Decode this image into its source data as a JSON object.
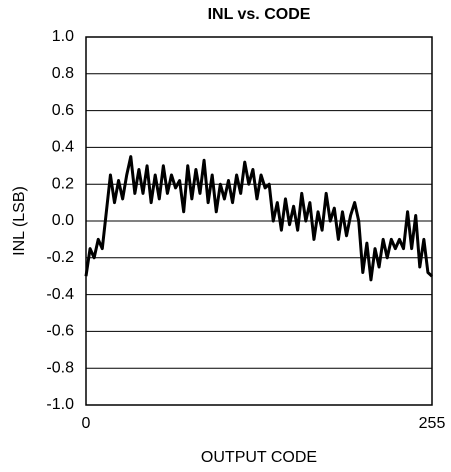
{
  "chart_data": {
    "type": "line",
    "title": "INL vs. CODE",
    "xlabel": "OUTPUT CODE",
    "ylabel": "INL (LSB)",
    "x": [
      0,
      3,
      6,
      9,
      12,
      15,
      18,
      21,
      24,
      27,
      30,
      33,
      36,
      39,
      42,
      45,
      48,
      51,
      54,
      57,
      60,
      63,
      66,
      69,
      72,
      75,
      78,
      81,
      84,
      87,
      90,
      93,
      96,
      99,
      102,
      105,
      108,
      111,
      114,
      117,
      120,
      123,
      126,
      129,
      132,
      135,
      138,
      141,
      144,
      147,
      150,
      153,
      156,
      159,
      162,
      165,
      168,
      171,
      174,
      177,
      180,
      183,
      186,
      189,
      192,
      195,
      198,
      201,
      204,
      207,
      210,
      213,
      216,
      219,
      222,
      225,
      228,
      231,
      234,
      237,
      240,
      243,
      246,
      249,
      252,
      255
    ],
    "series": [
      {
        "color": "#000000",
        "values": [
          -0.3,
          -0.15,
          -0.2,
          -0.1,
          -0.15,
          0.05,
          0.25,
          0.1,
          0.22,
          0.12,
          0.25,
          0.35,
          0.15,
          0.28,
          0.15,
          0.3,
          0.1,
          0.25,
          0.12,
          0.3,
          0.15,
          0.25,
          0.18,
          0.22,
          0.05,
          0.3,
          0.12,
          0.28,
          0.15,
          0.33,
          0.1,
          0.25,
          0.05,
          0.2,
          0.12,
          0.22,
          0.1,
          0.25,
          0.15,
          0.32,
          0.2,
          0.28,
          0.12,
          0.25,
          0.18,
          0.2,
          0.0,
          0.1,
          -0.05,
          0.12,
          -0.02,
          0.08,
          -0.05,
          0.15,
          0.0,
          0.1,
          -0.1,
          0.05,
          -0.05,
          0.15,
          0.0,
          0.07,
          -0.1,
          0.05,
          -0.08,
          0.03,
          0.1,
          0.0,
          -0.28,
          -0.12,
          -0.32,
          -0.15,
          -0.25,
          -0.1,
          -0.2,
          -0.1,
          -0.15,
          -0.1,
          -0.15,
          0.05,
          -0.15,
          0.03,
          -0.25,
          -0.1,
          -0.28,
          -0.3
        ]
      }
    ],
    "xlim": [
      0,
      255
    ],
    "xticks": [
      0,
      255
    ],
    "ylim": [
      -1.0,
      1.0
    ],
    "yticks": [
      {
        "value": -1.0,
        "label": "-1.0"
      },
      -0.8,
      -0.6,
      -0.4,
      -0.2,
      {
        "value": 0.0,
        "label": "0.0"
      },
      0.2,
      0.4,
      0.6,
      0.8,
      {
        "value": 1.0,
        "label": "1.0"
      }
    ],
    "grid": true
  }
}
